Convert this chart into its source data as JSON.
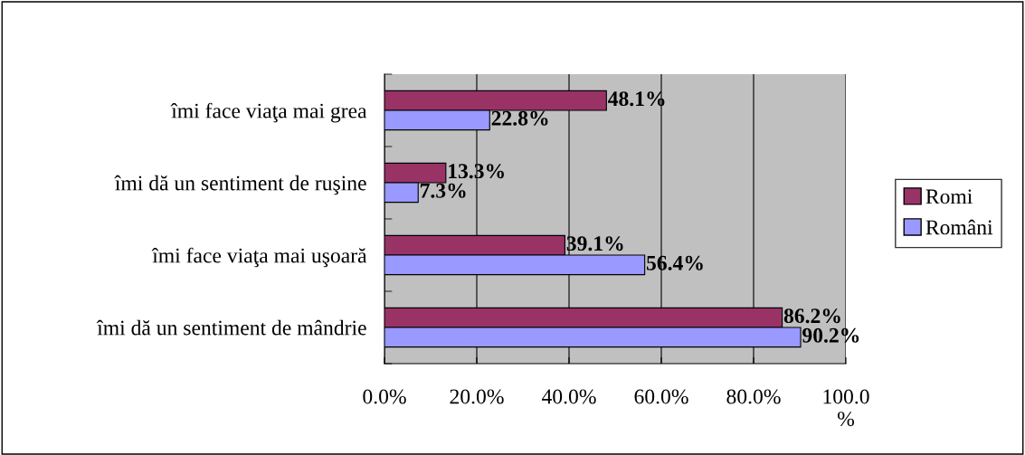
{
  "chart_data": {
    "type": "bar",
    "orientation": "horizontal",
    "categories": [
      "îmi face viaţa mai grea",
      "îmi dă un sentiment de ruşine",
      "îmi face viaţa mai uşoară",
      "îmi dă un sentiment de mândrie"
    ],
    "series": [
      {
        "name": "Romi",
        "color": "#993366",
        "values": [
          48.1,
          13.3,
          39.1,
          86.2
        ],
        "value_labels": [
          "48.1%",
          "13.3%",
          "39.1%",
          "86.2%"
        ]
      },
      {
        "name": "Români",
        "color": "#9999ff",
        "values": [
          22.8,
          7.3,
          56.4,
          90.2
        ],
        "value_labels": [
          "22.8%",
          "7.3%",
          "56.4%",
          "90.2%"
        ]
      }
    ],
    "xlim": [
      0,
      100
    ],
    "xticks": [
      {
        "value": 0,
        "label": "0.0%"
      },
      {
        "value": 20,
        "label": "20.0%"
      },
      {
        "value": 40,
        "label": "40.0%"
      },
      {
        "value": 60,
        "label": "60.0%"
      },
      {
        "value": 80,
        "label": "80.0%"
      },
      {
        "value": 100,
        "label": "100.0\n%"
      }
    ],
    "grid": "x",
    "legend": "right"
  }
}
